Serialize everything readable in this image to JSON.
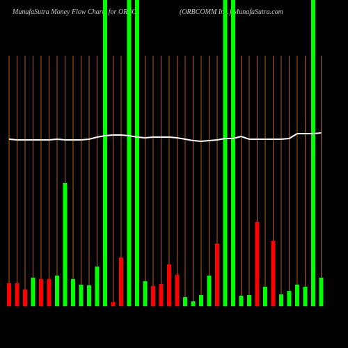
{
  "chart_data": {
    "type": "bar",
    "title": "MunafaSutra  Money Flow  Charts for ORBC",
    "subtitle": "(ORBCOMM Inc.) MunafaSutra.com",
    "categories": [
      null,
      null,
      null,
      null,
      null,
      null,
      null,
      null,
      null,
      null,
      null,
      null,
      null,
      null,
      null,
      null,
      null,
      null,
      null,
      null,
      null,
      null,
      null,
      null,
      null,
      null,
      null,
      null,
      null,
      null,
      null,
      null,
      null,
      null,
      null,
      null,
      null,
      null,
      null,
      null
    ],
    "values": [
      33,
      33,
      24,
      41,
      39,
      39,
      44,
      177,
      39,
      31,
      30,
      57,
      440,
      6,
      70,
      440,
      440,
      36,
      29,
      32,
      60,
      45,
      13,
      7,
      16,
      44,
      90,
      440,
      440,
      15,
      16,
      121,
      28,
      94,
      17,
      22,
      31,
      28,
      440,
      41
    ],
    "colors": [
      "#ff0000",
      "#ff0000",
      "#ff0000",
      "#00ff00",
      "#ff0000",
      "#ff0000",
      "#00ff00",
      "#00ff00",
      "#00ff00",
      "#00ff00",
      "#00ff00",
      "#00ff00",
      "#00ff00",
      "#ff0000",
      "#ff0000",
      "#00ff00",
      "#00ff00",
      "#00ff00",
      "#ff0000",
      "#ff0000",
      "#ff0000",
      "#ff0000",
      "#00ff00",
      "#00ff00",
      "#00ff00",
      "#00ff00",
      "#ff0000",
      "#00ff00",
      "#00ff00",
      "#00ff00",
      "#00ff00",
      "#ff0000",
      "#00ff00",
      "#ff0000",
      "#00ff00",
      "#00ff00",
      "#00ff00",
      "#00ff00",
      "#00ff00",
      "#00ff00"
    ],
    "line": [
      240,
      239,
      239,
      239,
      239,
      239,
      240,
      239,
      239,
      239,
      240,
      243,
      245,
      246,
      246,
      245,
      243,
      242,
      243,
      243,
      243,
      242,
      240,
      238,
      237,
      238,
      239,
      241,
      241,
      244,
      240,
      240,
      240,
      240,
      240,
      241,
      248,
      248,
      248,
      249
    ],
    "line_color": "#ffffff",
    "ylim": [
      0,
      440
    ]
  }
}
